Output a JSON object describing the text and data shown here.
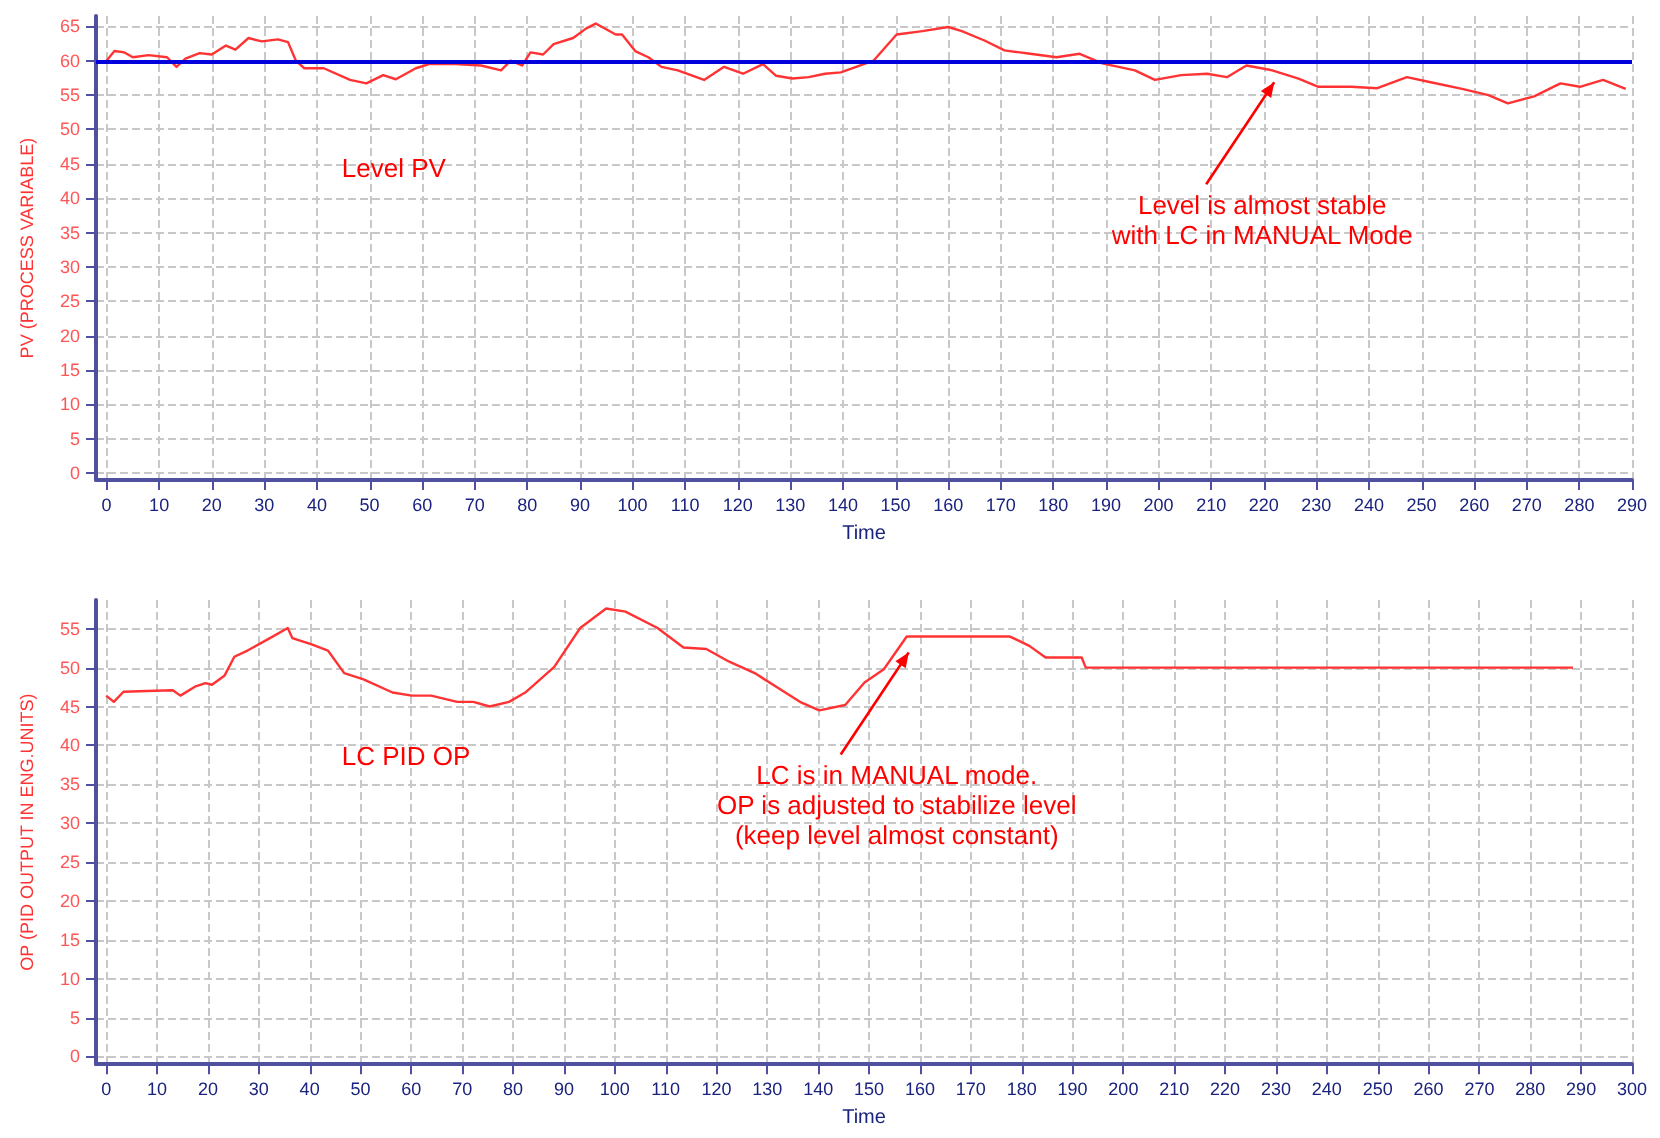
{
  "chart_data": [
    {
      "type": "line",
      "xlabel": "Time",
      "ylabel": "PV (PROCESS VARIABLE)",
      "xlim": [
        -2,
        290
      ],
      "ylim": [
        -1,
        66.5
      ],
      "xticks": [
        0,
        10,
        20,
        30,
        40,
        50,
        60,
        70,
        80,
        90,
        100,
        110,
        120,
        130,
        140,
        150,
        160,
        170,
        180,
        190,
        200,
        210,
        220,
        230,
        240,
        250,
        260,
        270,
        280,
        290
      ],
      "yticks": [
        0,
        5,
        10,
        15,
        20,
        25,
        30,
        35,
        40,
        45,
        50,
        55,
        60,
        65
      ],
      "grid": true,
      "marker": "none",
      "line_style": "solid",
      "series": [
        {
          "color": "#ff3333",
          "x": [
            0,
            1.5,
            3.4,
            5,
            8,
            11.5,
            13.3,
            15,
            17.7,
            20,
            22.7,
            24.5,
            27,
            29.5,
            32.6,
            34.5,
            36,
            37.6,
            41.3,
            46.3,
            49.4,
            52.6,
            55,
            58.8,
            61.3,
            66.3,
            71.2,
            75,
            76.8,
            79,
            80.6,
            83,
            85,
            88.7,
            91.2,
            93,
            96.8,
            98,
            100.5,
            103,
            105.5,
            108.6,
            113.6,
            117.4,
            121,
            124.8,
            127.3,
            130.4,
            133.5,
            136.6,
            139.6,
            145.8,
            150.2,
            155.1,
            160,
            162.6,
            167,
            170.7,
            175.6,
            180.6,
            185,
            189.3,
            195.5,
            199.3,
            204.3,
            209.2,
            213,
            216.7,
            221.6,
            226.6,
            230.4,
            236.6,
            241.6,
            247.2,
            251.5,
            257.7,
            262.7,
            266.4,
            271.4,
            276.4,
            280.1,
            284.5,
            288.8
          ],
          "values": [
            60,
            61.4,
            61.2,
            60.5,
            60.8,
            60.5,
            59.1,
            60.3,
            61.1,
            60.9,
            62.2,
            61.6,
            63.3,
            62.8,
            63.1,
            62.7,
            60,
            58.9,
            58.9,
            57.2,
            56.7,
            57.9,
            57.3,
            58.9,
            59.5,
            59.5,
            59.3,
            58.6,
            60,
            59.3,
            61.2,
            60.9,
            62.4,
            63.3,
            64.7,
            65.4,
            63.8,
            63.8,
            61.4,
            60.5,
            59.1,
            58.6,
            57.2,
            59.1,
            58.1,
            59.5,
            57.8,
            57.4,
            57.6,
            58.1,
            58.3,
            60,
            63.8,
            64.3,
            64.9,
            64.3,
            62.9,
            61.5,
            61,
            60.5,
            61,
            59.6,
            58.6,
            57.2,
            57.9,
            58.1,
            57.6,
            59.3,
            58.6,
            57.4,
            56.2,
            56.2,
            56,
            57.6,
            56.9,
            55.9,
            55,
            53.8,
            54.8,
            56.7,
            56.2,
            57.2,
            55.9
          ]
        }
      ],
      "ref_lines": [
        {
          "axis": "y",
          "value": 60,
          "color": "#0000dd"
        }
      ],
      "annotations": [
        "Level PV",
        {
          "text": "Level is almost stable\nwith LC in MANUAL Mode",
          "x": 221.6,
          "y": 58.6
        }
      ]
    },
    {
      "type": "line",
      "xlabel": "Time",
      "ylabel": "OP (PID OUTPUT IN ENG.UNITS)",
      "xlim": [
        -2,
        300
      ],
      "ylim": [
        -1,
        58.7
      ],
      "xticks": [
        0,
        10,
        20,
        30,
        40,
        50,
        60,
        70,
        80,
        90,
        100,
        110,
        120,
        130,
        140,
        150,
        160,
        170,
        180,
        190,
        200,
        210,
        220,
        230,
        240,
        250,
        260,
        270,
        280,
        290,
        300
      ],
      "yticks": [
        0,
        5,
        10,
        15,
        20,
        25,
        30,
        35,
        40,
        45,
        50,
        55
      ],
      "grid": true,
      "marker": "none",
      "line_style": "solid",
      "series": [
        {
          "color": "#ff3333",
          "x": [
            0,
            1.5,
            3.4,
            8,
            13.1,
            14.6,
            17.6,
            19.5,
            20.8,
            23.3,
            25.2,
            27.8,
            32.2,
            35.7,
            36.6,
            40.4,
            43.6,
            46.8,
            50.6,
            56.3,
            60.1,
            63.9,
            69,
            72.2,
            75.4,
            79.2,
            82.4,
            88.1,
            93.2,
            98.3,
            102.1,
            108.4,
            113.5,
            118,
            122.4,
            127.5,
            132.6,
            136.4,
            140.2,
            145.3,
            149.1,
            152.9,
            157.4,
            177.7,
            181.5,
            184.7,
            191.8,
            192.6,
            288.4
          ],
          "values": [
            46.4,
            45.6,
            46.9,
            47,
            47.1,
            46.4,
            47.6,
            48,
            47.8,
            49,
            51.4,
            52.2,
            53.8,
            55.1,
            53.8,
            53,
            52.2,
            49.3,
            48.5,
            46.8,
            46.4,
            46.4,
            45.6,
            45.6,
            45,
            45.6,
            46.8,
            50.1,
            55.1,
            57.6,
            57.2,
            55.1,
            52.6,
            52.4,
            50.8,
            49.3,
            47.2,
            45.6,
            44.5,
            45.2,
            48.1,
            49.8,
            54,
            54,
            52.8,
            51.3,
            51.3,
            50,
            50
          ]
        }
      ],
      "annotations": [
        "LC PID OP",
        {
          "text": "LC is in MANUAL mode.\nOP is adjusted to stabilize level\n(keep level almost constant)",
          "x": 157.4,
          "y": 53.5
        }
      ]
    }
  ]
}
